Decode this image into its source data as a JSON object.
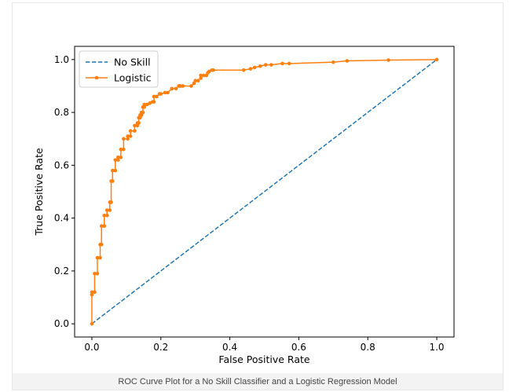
{
  "caption": "ROC Curve Plot for a No Skill Classifier and a Logistic Regression Model",
  "chart_data": {
    "type": "line",
    "title": "",
    "xlabel": "False Positive Rate",
    "ylabel": "True Positive Rate",
    "xlim": [
      -0.05,
      1.05
    ],
    "ylim": [
      -0.05,
      1.05
    ],
    "x_ticks": [
      "0.0",
      "0.2",
      "0.4",
      "0.6",
      "0.8",
      "1.0"
    ],
    "y_ticks": [
      "0.0",
      "0.2",
      "0.4",
      "0.6",
      "0.8",
      "1.0"
    ],
    "grid": false,
    "legend_position": "top-left",
    "series": [
      {
        "name": "No Skill",
        "style": "dashed",
        "marker": "none",
        "color": "#1f77b4",
        "x": [
          0.0,
          1.0
        ],
        "y": [
          0.0,
          1.0
        ]
      },
      {
        "name": "Logistic",
        "style": "solid",
        "marker": "dot",
        "color": "#ff7f0e",
        "x": [
          0.0,
          0.0,
          0.0,
          0.008,
          0.008,
          0.016,
          0.016,
          0.024,
          0.024,
          0.028,
          0.028,
          0.036,
          0.036,
          0.044,
          0.044,
          0.052,
          0.052,
          0.056,
          0.056,
          0.06,
          0.06,
          0.068,
          0.068,
          0.076,
          0.076,
          0.084,
          0.084,
          0.092,
          0.092,
          0.104,
          0.104,
          0.112,
          0.112,
          0.124,
          0.124,
          0.132,
          0.132,
          0.136,
          0.136,
          0.14,
          0.14,
          0.144,
          0.144,
          0.148,
          0.148,
          0.152,
          0.152,
          0.16,
          0.168,
          0.176,
          0.18,
          0.18,
          0.188,
          0.196,
          0.2,
          0.212,
          0.22,
          0.232,
          0.232,
          0.244,
          0.252,
          0.256,
          0.256,
          0.264,
          0.288,
          0.296,
          0.3,
          0.308,
          0.316,
          0.316,
          0.324,
          0.332,
          0.336,
          0.34,
          0.348,
          0.352,
          0.44,
          0.46,
          0.472,
          0.488,
          0.504,
          0.52,
          0.552,
          0.572,
          0.7,
          0.74,
          0.86,
          1.0
        ],
        "y": [
          0.0,
          0.11,
          0.12,
          0.12,
          0.19,
          0.19,
          0.25,
          0.25,
          0.3,
          0.3,
          0.37,
          0.37,
          0.41,
          0.41,
          0.43,
          0.43,
          0.46,
          0.46,
          0.54,
          0.54,
          0.58,
          0.58,
          0.62,
          0.62,
          0.63,
          0.63,
          0.66,
          0.66,
          0.7,
          0.7,
          0.71,
          0.71,
          0.73,
          0.73,
          0.75,
          0.75,
          0.76,
          0.76,
          0.78,
          0.78,
          0.79,
          0.79,
          0.8,
          0.8,
          0.82,
          0.82,
          0.83,
          0.83,
          0.835,
          0.84,
          0.84,
          0.86,
          0.86,
          0.87,
          0.87,
          0.875,
          0.875,
          0.89,
          0.89,
          0.89,
          0.9,
          0.9,
          0.9,
          0.9,
          0.9,
          0.91,
          0.92,
          0.92,
          0.93,
          0.94,
          0.94,
          0.94,
          0.95,
          0.955,
          0.96,
          0.96,
          0.96,
          0.965,
          0.97,
          0.975,
          0.98,
          0.98,
          0.985,
          0.985,
          0.99,
          0.995,
          0.998,
          1.0
        ]
      }
    ]
  }
}
